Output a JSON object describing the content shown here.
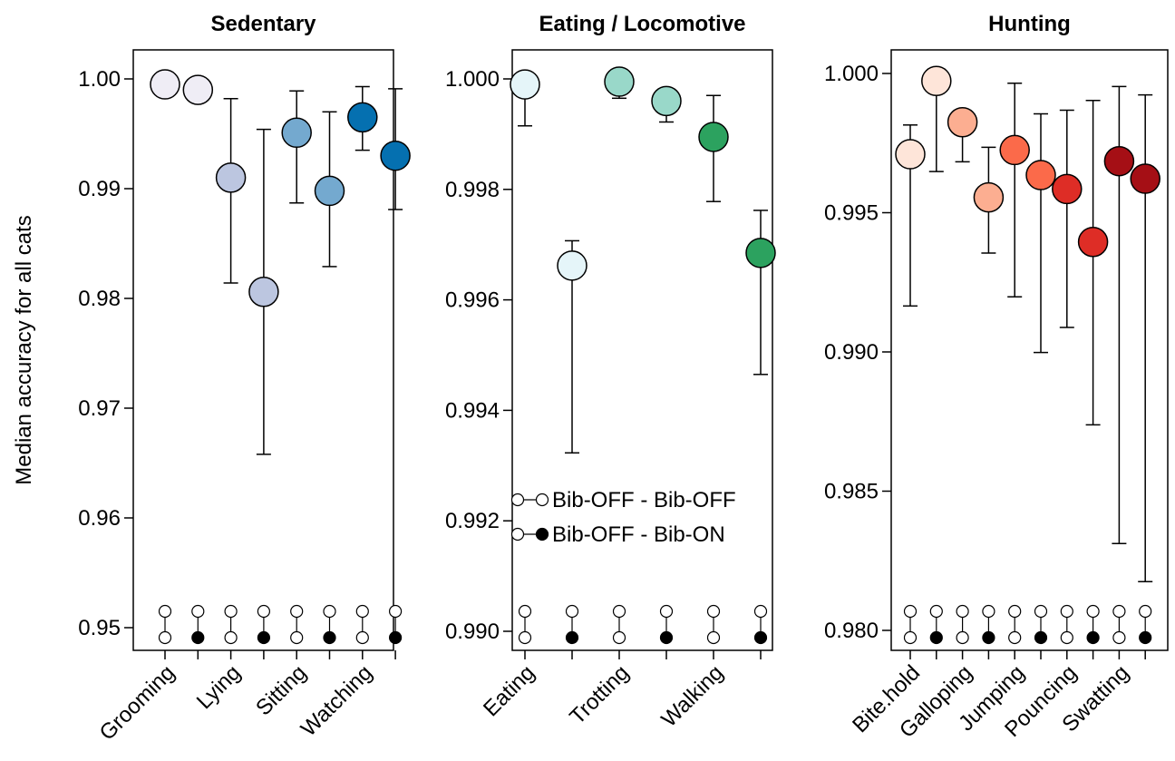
{
  "y_axis_label": "Median accuracy for all cats",
  "legend": [
    {
      "label": "Bib-OFF - Bib-OFF",
      "second_marker": "open"
    },
    {
      "label": "Bib-OFF - Bib-ON",
      "second_marker": "filled"
    }
  ],
  "chart_data": [
    {
      "type": "scatter",
      "title": "Sedentary",
      "ylim": [
        0.95,
        1.0
      ],
      "yticks": [
        0.95,
        0.96,
        0.97,
        0.98,
        0.99,
        1.0
      ],
      "ytick_labels": [
        "0.95",
        "0.96",
        "0.97",
        "0.98",
        "0.99",
        "1.00"
      ],
      "categories": [
        "Grooming",
        "Grooming",
        "Lying",
        "Lying",
        "Sitting",
        "Sitting",
        "Watching",
        "Watching"
      ],
      "xtick_labels": [
        "Grooming",
        "Lying",
        "Sitting",
        "Watching"
      ],
      "comparison": [
        "Bib-OFF - Bib-OFF",
        "Bib-OFF - Bib-ON",
        "Bib-OFF - Bib-OFF",
        "Bib-OFF - Bib-ON",
        "Bib-OFF - Bib-OFF",
        "Bib-OFF - Bib-ON",
        "Bib-OFF - Bib-OFF",
        "Bib-OFF - Bib-ON"
      ],
      "values": [
        0.9995,
        0.999,
        0.991,
        0.9806,
        0.9951,
        0.9898,
        0.9965,
        0.993
      ],
      "lower": [
        null,
        null,
        0.9814,
        0.9658,
        0.9887,
        0.9829,
        0.9935,
        0.9881
      ],
      "upper": [
        null,
        null,
        0.9982,
        0.9954,
        0.9989,
        0.997,
        0.9993,
        0.9991
      ],
      "colors": [
        "#efedf5",
        "#efedf5",
        "#bcc6e0",
        "#bcc6e0",
        "#74a9cf",
        "#74a9cf",
        "#0570b0",
        "#0570b0"
      ]
    },
    {
      "type": "scatter",
      "title": "Eating / Locomotive",
      "ylim": [
        0.99,
        1.0
      ],
      "yticks": [
        0.99,
        0.992,
        0.994,
        0.996,
        0.998,
        1.0
      ],
      "ytick_labels": [
        "0.990",
        "0.992",
        "0.994",
        "0.996",
        "0.998",
        "1.000"
      ],
      "categories": [
        "Eating",
        "Eating",
        "Trotting",
        "Trotting",
        "Walking",
        "Walking"
      ],
      "xtick_labels": [
        "Eating",
        "Trotting",
        "Walking"
      ],
      "comparison": [
        "Bib-OFF - Bib-OFF",
        "Bib-OFF - Bib-ON",
        "Bib-OFF - Bib-OFF",
        "Bib-OFF - Bib-ON",
        "Bib-OFF - Bib-OFF",
        "Bib-OFF - Bib-ON"
      ],
      "values": [
        0.9999,
        0.99662,
        0.99995,
        0.9996,
        0.99895,
        0.99685
      ],
      "lower": [
        0.99915,
        0.99323,
        0.99965,
        0.99922,
        0.99778,
        0.99465
      ],
      "upper": [
        null,
        0.99707,
        null,
        null,
        0.9997,
        0.99762
      ],
      "colors": [
        "#e5f5f9",
        "#e5f5f9",
        "#99d8c9",
        "#99d8c9",
        "#2ca25f",
        "#2ca25f"
      ]
    },
    {
      "type": "scatter",
      "title": "Hunting",
      "ylim": [
        0.98,
        1.0
      ],
      "yticks": [
        0.98,
        0.985,
        0.99,
        0.995,
        1.0
      ],
      "ytick_labels": [
        "0.980",
        "0.985",
        "0.990",
        "0.995",
        "1.000"
      ],
      "categories": [
        "Bite.hold",
        "Bite.hold",
        "Galloping",
        "Galloping",
        "Jumping",
        "Jumping",
        "Pouncing",
        "Pouncing",
        "Swatting",
        "Swatting"
      ],
      "xtick_labels": [
        "Bite.hold",
        "Galloping",
        "Jumping",
        "Pouncing",
        "Swatting"
      ],
      "comparison": [
        "Bib-OFF - Bib-OFF",
        "Bib-OFF - Bib-ON",
        "Bib-OFF - Bib-OFF",
        "Bib-OFF - Bib-ON",
        "Bib-OFF - Bib-OFF",
        "Bib-OFF - Bib-ON",
        "Bib-OFF - Bib-OFF",
        "Bib-OFF - Bib-ON",
        "Bib-OFF - Bib-OFF",
        "Bib-OFF - Bib-ON"
      ],
      "values": [
        0.9971,
        0.99973,
        0.99825,
        0.99555,
        0.99725,
        0.99635,
        0.99585,
        0.99395,
        0.99685,
        0.99622
      ],
      "lower": [
        0.99165,
        0.99648,
        0.99683,
        0.99355,
        0.99198,
        0.98998,
        0.99088,
        0.98738,
        0.98312,
        0.98175
      ],
      "upper": [
        0.99815,
        null,
        null,
        0.99735,
        0.99965,
        0.99855,
        0.99868,
        0.99903,
        0.99953,
        0.99923
      ],
      "colors": [
        "#fee5d9",
        "#fee5d9",
        "#fcae91",
        "#fcae91",
        "#fb6a4a",
        "#fb6a4a",
        "#de2d26",
        "#de2d26",
        "#a50f15",
        "#a50f15"
      ]
    }
  ]
}
